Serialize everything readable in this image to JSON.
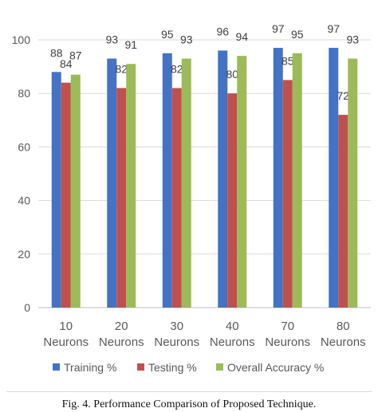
{
  "chart_data": {
    "type": "bar",
    "categories": [
      [
        "10",
        "Neurons"
      ],
      [
        "20",
        "Neurons"
      ],
      [
        "30",
        "Neurons"
      ],
      [
        "40",
        "Neurons"
      ],
      [
        "70",
        "Neurons"
      ],
      [
        "80",
        "Neurons"
      ]
    ],
    "series": [
      {
        "name": "Training %",
        "color": "#4472C4",
        "values": [
          88,
          93,
          95,
          96,
          97,
          97
        ]
      },
      {
        "name": "Testing %",
        "color": "#C0504D",
        "values": [
          84,
          82,
          82,
          80,
          85,
          72
        ]
      },
      {
        "name": "Overall Accuracy %",
        "color": "#9BBB59",
        "values": [
          87,
          91,
          93,
          94,
          95,
          93
        ]
      }
    ],
    "ylim": [
      0,
      100
    ],
    "yticks": [
      0,
      20,
      40,
      60,
      80,
      100
    ],
    "grid": true,
    "legend": "bottom",
    "data_labels": true
  },
  "caption": "Fig. 4.    Performance Comparison of Proposed Technique."
}
